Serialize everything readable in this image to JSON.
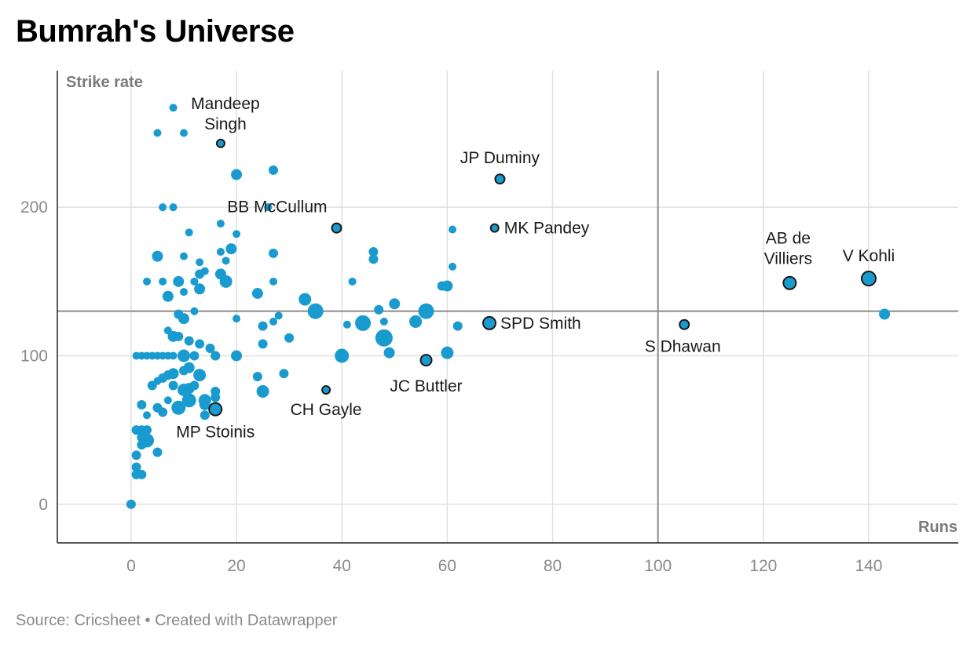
{
  "title": "Bumrah's Universe",
  "footer": "Source: Cricsheet • Created with Datawrapper",
  "colors": {
    "point": "#1a9bcf",
    "highlight_stroke": "#1a1a1a",
    "grid": "#e0e0e0",
    "reference": "#8a8a8a"
  },
  "chart_data": {
    "type": "scatter",
    "title": "Bumrah's Universe",
    "xlabel": "Runs",
    "ylabel": "Strike rate",
    "xlim": [
      -14,
      157
    ],
    "ylim": [
      -26,
      292
    ],
    "x_ticks": [
      0,
      20,
      40,
      60,
      80,
      100,
      120,
      140
    ],
    "y_ticks": [
      0,
      100,
      200
    ],
    "reference_lines": {
      "x": 100,
      "y": 130
    },
    "grid": true,
    "highlighted": [
      {
        "label": "Mandeep\nSingh",
        "x": 17,
        "y": 243,
        "size": 5
      },
      {
        "label": "JP Duminy",
        "x": 70,
        "y": 219,
        "size": 6
      },
      {
        "label": "BB McCullum",
        "x": 39,
        "y": 186,
        "size": 6
      },
      {
        "label": "MK Pandey",
        "x": 69,
        "y": 186,
        "size": 5
      },
      {
        "label": "AB de\nVilliers",
        "x": 125,
        "y": 149,
        "size": 8
      },
      {
        "label": "V Kohli",
        "x": 140,
        "y": 152,
        "size": 9
      },
      {
        "label": "SPD Smith",
        "x": 68,
        "y": 122,
        "size": 8
      },
      {
        "label": "S Dhawan",
        "x": 105,
        "y": 121,
        "size": 6
      },
      {
        "label": "JC Buttler",
        "x": 56,
        "y": 97,
        "size": 7
      },
      {
        "label": "CH Gayle",
        "x": 37,
        "y": 77,
        "size": 5
      },
      {
        "label": "MP Stoinis",
        "x": 16,
        "y": 64,
        "size": 8
      }
    ],
    "points": [
      [
        0,
        0,
        6
      ],
      [
        1,
        25,
        6
      ],
      [
        1,
        20,
        6
      ],
      [
        2,
        20,
        6
      ],
      [
        1,
        33,
        6
      ],
      [
        2,
        40,
        6
      ],
      [
        3,
        43,
        9
      ],
      [
        2,
        45,
        6
      ],
      [
        1,
        50,
        6
      ],
      [
        2,
        50,
        6
      ],
      [
        3,
        50,
        6
      ],
      [
        5,
        35,
        6
      ],
      [
        1,
        100,
        5
      ],
      [
        2,
        100,
        5
      ],
      [
        3,
        100,
        5
      ],
      [
        4,
        100,
        5
      ],
      [
        5,
        100,
        5
      ],
      [
        6,
        100,
        5
      ],
      [
        7,
        100,
        5
      ],
      [
        8,
        100,
        5
      ],
      [
        10,
        100,
        8
      ],
      [
        12,
        100,
        6
      ],
      [
        16,
        100,
        6
      ],
      [
        20,
        100,
        7
      ],
      [
        2,
        67,
        6
      ],
      [
        3,
        60,
        5
      ],
      [
        4,
        80,
        6
      ],
      [
        5,
        83,
        5
      ],
      [
        5,
        65,
        6
      ],
      [
        6,
        85,
        6
      ],
      [
        6,
        62,
        6
      ],
      [
        7,
        87,
        6
      ],
      [
        7,
        70,
        5
      ],
      [
        7,
        117,
        5
      ],
      [
        8,
        88,
        7
      ],
      [
        8,
        113,
        7
      ],
      [
        8,
        80,
        6
      ],
      [
        9,
        128,
        6
      ],
      [
        9,
        113,
        6
      ],
      [
        9,
        65,
        9
      ],
      [
        10,
        125,
        7
      ],
      [
        10,
        90,
        6
      ],
      [
        10,
        77,
        8
      ],
      [
        11,
        110,
        6
      ],
      [
        11,
        92,
        7
      ],
      [
        11,
        70,
        9
      ],
      [
        11,
        78,
        7
      ],
      [
        12,
        80,
        6
      ],
      [
        12,
        130,
        5
      ],
      [
        13,
        87,
        8
      ],
      [
        13,
        108,
        6
      ],
      [
        13,
        155,
        6
      ],
      [
        14,
        70,
        8
      ],
      [
        14,
        67,
        7
      ],
      [
        14,
        60,
        6
      ],
      [
        15,
        105,
        6
      ],
      [
        16,
        100,
        6
      ],
      [
        16,
        76,
        6
      ],
      [
        16,
        72,
        6
      ],
      [
        5,
        167,
        7
      ],
      [
        6,
        150,
        5
      ],
      [
        3,
        150,
        5
      ],
      [
        6,
        200,
        5
      ],
      [
        8,
        200,
        5
      ],
      [
        5,
        250,
        5
      ],
      [
        10,
        250,
        5
      ],
      [
        8,
        267,
        5
      ],
      [
        9,
        150,
        7
      ],
      [
        10,
        167,
        5
      ],
      [
        10,
        143,
        5
      ],
      [
        11,
        183,
        5
      ],
      [
        12,
        150,
        5
      ],
      [
        13,
        163,
        5
      ],
      [
        14,
        157,
        5
      ],
      [
        17,
        155,
        7
      ],
      [
        17,
        170,
        5
      ],
      [
        17,
        189,
        5
      ],
      [
        18,
        164,
        5
      ],
      [
        18,
        150,
        8
      ],
      [
        19,
        172,
        7
      ],
      [
        20,
        182,
        5
      ],
      [
        20,
        125,
        5
      ],
      [
        20,
        222,
        7
      ],
      [
        24,
        142,
        7
      ],
      [
        25,
        120,
        6
      ],
      [
        25,
        108,
        6
      ],
      [
        24,
        86,
        6
      ],
      [
        25,
        76,
        8
      ],
      [
        26,
        200,
        5
      ],
      [
        27,
        225,
        6
      ],
      [
        27,
        169,
        6
      ],
      [
        27,
        150,
        5
      ],
      [
        27,
        123,
        5
      ],
      [
        28,
        127,
        5
      ],
      [
        29,
        88,
        6
      ],
      [
        30,
        112,
        6
      ],
      [
        33,
        138,
        8
      ],
      [
        35,
        130,
        10
      ],
      [
        40,
        100,
        9
      ],
      [
        41,
        121,
        5
      ],
      [
        42,
        150,
        5
      ],
      [
        44,
        122,
        10
      ],
      [
        46,
        170,
        6
      ],
      [
        46,
        165,
        6
      ],
      [
        47,
        131,
        6
      ],
      [
        48,
        112,
        11
      ],
      [
        48,
        123,
        5
      ],
      [
        49,
        102,
        7
      ],
      [
        50,
        135,
        7
      ],
      [
        54,
        123,
        8
      ],
      [
        56,
        130,
        10
      ],
      [
        59,
        147,
        6
      ],
      [
        60,
        147,
        7
      ],
      [
        60,
        102,
        8
      ],
      [
        61,
        185,
        5
      ],
      [
        61,
        160,
        5
      ],
      [
        62,
        120,
        6
      ],
      [
        143,
        128,
        7
      ],
      [
        7,
        140,
        7
      ],
      [
        13,
        145,
        7
      ]
    ]
  },
  "annotation_layout": {
    "Mandeep\nSingh": {
      "dx": 6,
      "dy": -44,
      "anchor": "middle"
    },
    "JP Duminy": {
      "dx": 0,
      "dy": -20,
      "anchor": "middle"
    },
    "BB McCullum": {
      "dx": -12,
      "dy": -20,
      "anchor": "end"
    },
    "MK Pandey": {
      "dx": 12,
      "dy": 7,
      "anchor": "start"
    },
    "AB de\nVilliers": {
      "dx": -2,
      "dy": -50,
      "anchor": "middle"
    },
    "V Kohli": {
      "dx": 0,
      "dy": -22,
      "anchor": "middle"
    },
    "SPD Smith": {
      "dx": 14,
      "dy": 7,
      "anchor": "start"
    },
    "S Dhawan": {
      "dx": -2,
      "dy": 35,
      "anchor": "middle"
    },
    "JC Buttler": {
      "dx": 0,
      "dy": 40,
      "anchor": "middle"
    },
    "CH Gayle": {
      "dx": 0,
      "dy": 32,
      "anchor": "middle"
    },
    "MP Stoinis": {
      "dx": 0,
      "dy": 36,
      "anchor": "middle"
    }
  }
}
